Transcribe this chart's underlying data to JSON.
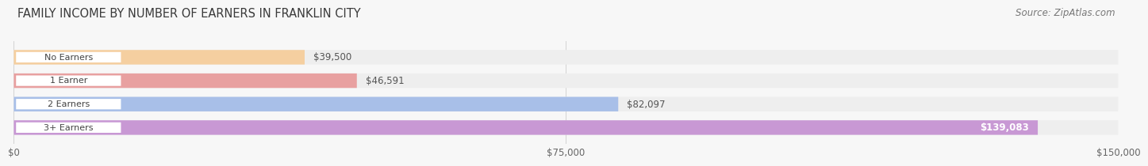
{
  "title": "FAMILY INCOME BY NUMBER OF EARNERS IN FRANKLIN CITY",
  "source": "Source: ZipAtlas.com",
  "categories": [
    "No Earners",
    "1 Earner",
    "2 Earners",
    "3+ Earners"
  ],
  "values": [
    39500,
    46591,
    82097,
    139083
  ],
  "labels": [
    "$39,500",
    "$46,591",
    "$82,097",
    "$139,083"
  ],
  "bar_colors": [
    "#f5cfa0",
    "#e8a0a0",
    "#a8bfe8",
    "#c898d4"
  ],
  "bar_track_color": "#eeeeee",
  "label_pill_color": "#ffffff",
  "x_max": 150000,
  "x_ticks": [
    0,
    75000,
    150000
  ],
  "x_tick_labels": [
    "$0",
    "$75,000",
    "$150,000"
  ],
  "background_color": "#f7f7f7",
  "title_fontsize": 10.5,
  "source_fontsize": 8.5,
  "value_fontsize": 8.5,
  "cat_fontsize": 8,
  "tick_fontsize": 8.5,
  "bar_height": 0.62,
  "label_color_inside": "#ffffff",
  "label_color_outside": "#555555",
  "cat_label_color": "#444444",
  "gridline_color": "#cccccc",
  "title_color": "#3a3a3a",
  "source_color": "#777777"
}
